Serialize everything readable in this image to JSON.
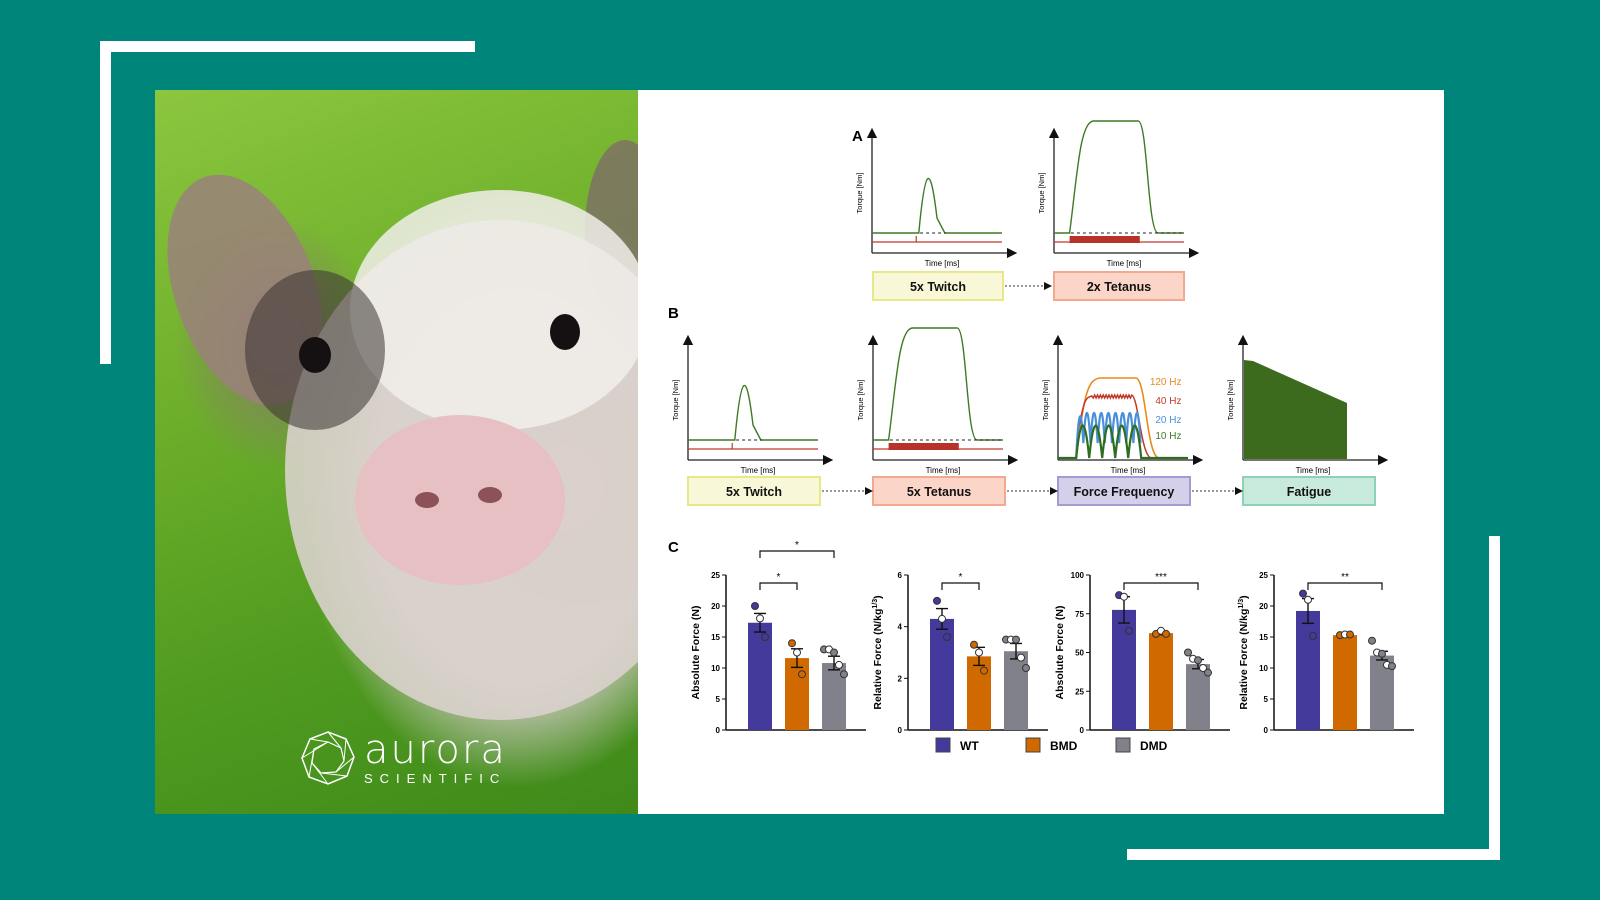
{
  "brand": {
    "name": "aurora",
    "tagline": "SCIENTIFIC"
  },
  "colors": {
    "background": "#00857b",
    "wt": "#433a9c",
    "bmd": "#d06a00",
    "dmd": "#80818b",
    "twitch_box": "#f8f8d8",
    "tetanus_box": "#fbd5c8",
    "ff_box": "#d5d0ea",
    "fatigue_box": "#c8eadc"
  },
  "panels": {
    "a_label": "A",
    "b_label": "B",
    "c_label": "C",
    "torque_axis": "Torque [Nm]",
    "time_axis": "Time [ms]",
    "a_steps": [
      "5x Twitch",
      "2x Tetanus"
    ],
    "b_steps": [
      "5x Twitch",
      "5x Tetanus",
      "Force Frequency",
      "Fatigue"
    ],
    "ff_labels": [
      "120 Hz",
      "40 Hz",
      "20 Hz",
      "10 Hz"
    ]
  },
  "chart_data": [
    {
      "type": "bar",
      "ylabel": "Absolute Force (N)",
      "ylim": [
        0,
        25
      ],
      "ticks": [
        0,
        5,
        10,
        15,
        20,
        25
      ],
      "categories": [
        "WT",
        "BMD",
        "DMD"
      ],
      "values": [
        17.3,
        11.6,
        10.8
      ],
      "sem": [
        1.5,
        1.5,
        1.1
      ],
      "points": [
        [
          20,
          18,
          15
        ],
        [
          14,
          12.5,
          9
        ],
        [
          13,
          13,
          12.5,
          10.5,
          9
        ]
      ],
      "significance": [
        {
          "from": 0,
          "to": 1,
          "label": "*"
        },
        {
          "from": 0,
          "to": 2,
          "label": "*"
        }
      ]
    },
    {
      "type": "bar",
      "ylabel": "Relative Force (N/kg^1/3)",
      "ylim": [
        0,
        6
      ],
      "ticks": [
        0,
        2,
        4,
        6
      ],
      "categories": [
        "WT",
        "BMD",
        "DMD"
      ],
      "values": [
        4.3,
        2.85,
        3.05
      ],
      "sem": [
        0.4,
        0.35,
        0.3
      ],
      "points": [
        [
          5,
          4.3,
          3.6
        ],
        [
          3.3,
          3.0,
          2.3
        ],
        [
          3.5,
          3.5,
          3.5,
          2.8,
          2.4
        ]
      ],
      "significance": [
        {
          "from": 0,
          "to": 1,
          "label": "*"
        }
      ]
    },
    {
      "type": "bar",
      "ylabel": "Absolute Force (N)",
      "ylim": [
        0,
        100
      ],
      "ticks": [
        0,
        25,
        50,
        75,
        100
      ],
      "categories": [
        "WT",
        "BMD",
        "DMD"
      ],
      "values": [
        77.5,
        62.5,
        42.5
      ],
      "sem": [
        8.5,
        1.0,
        3.0
      ],
      "points": [
        [
          87,
          86,
          64
        ],
        [
          62,
          64,
          62
        ],
        [
          50,
          46,
          45,
          40,
          37
        ]
      ],
      "significance": [
        {
          "from": 0,
          "to": 2,
          "label": "***"
        }
      ]
    },
    {
      "type": "bar",
      "ylabel": "Relative Force (N/kg^1/3)",
      "ylim": [
        0,
        25
      ],
      "ticks": [
        0,
        5,
        10,
        15,
        20,
        25
      ],
      "categories": [
        "WT",
        "BMD",
        "DMD"
      ],
      "values": [
        19.2,
        15.3,
        12.0
      ],
      "sem": [
        2.0,
        0.15,
        0.7
      ],
      "points": [
        [
          22,
          21,
          15.2
        ],
        [
          15.3,
          15.4,
          15.4
        ],
        [
          14.4,
          12.5,
          12.3,
          10.5,
          10.3
        ]
      ],
      "significance": [
        {
          "from": 0,
          "to": 2,
          "label": "**"
        }
      ]
    }
  ],
  "legend": [
    {
      "label": "WT",
      "color": "#433a9c"
    },
    {
      "label": "BMD",
      "color": "#d06a00"
    },
    {
      "label": "DMD",
      "color": "#80818b"
    }
  ]
}
